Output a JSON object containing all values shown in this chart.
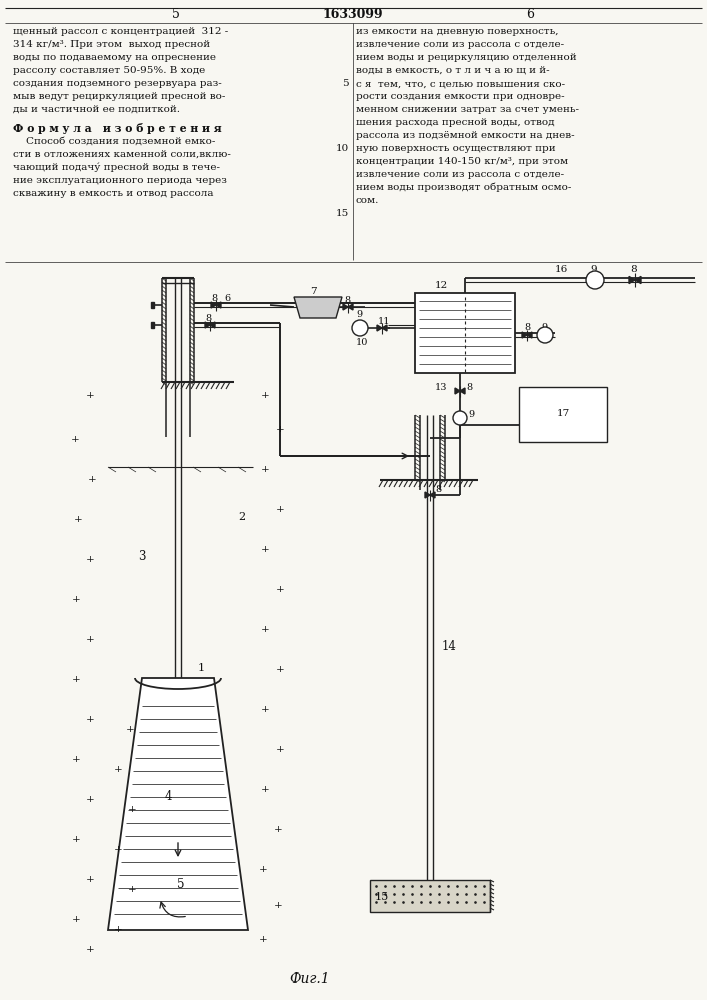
{
  "bg_color": "#f8f7f2",
  "line_color": "#222222",
  "text_color": "#111111",
  "page_num_left": "5",
  "page_center": "1633099",
  "page_num_right": "6",
  "caption": "Фиг.1",
  "left_col": [
    "щенный рассол с концентрацией  312 -",
    "314 кг/м³. При этом  выход пресной",
    "воды по подаваемому на опреснение",
    "рассолу составляет 50-95%. В ходе",
    "создания подземного резервуара раз-",
    "мыв ведут рециркуляцией пресной во-",
    "ды и частичной ее подпиткой."
  ],
  "formula_hdr": "Ф о р м у л а   и з о б р е т е н и я",
  "formula_col": [
    "    Способ создания подземной емко-",
    "сти в отложениях каменной соли,вклю-",
    "чающий подачу́ пресной воды в тече-",
    "ние эксплуатационного периода через",
    "скважину в емкость и отвод рассола"
  ],
  "right_col": [
    "из емкости на дневную поверхность,",
    "извлечение соли из рассола с отделе-",
    "нием воды и рециркуляцию отделенной",
    "воды в емкость, о т л и ч а ю щ и й-",
    "с я  тем, что, с целью повышения ско-",
    "рости создания емкости при одновре-",
    "менном снижении затрат за счет умень-",
    "шения расхода пресной воды, отвод",
    "рассола из подзёмной емкости на днев-",
    "ную поверхность осуществляют при",
    "концентрации 140-150 кг/м³, при этом",
    "извлечение соли из рассола с отделе-",
    "нием воды производят обратным осмо-",
    "сом."
  ]
}
